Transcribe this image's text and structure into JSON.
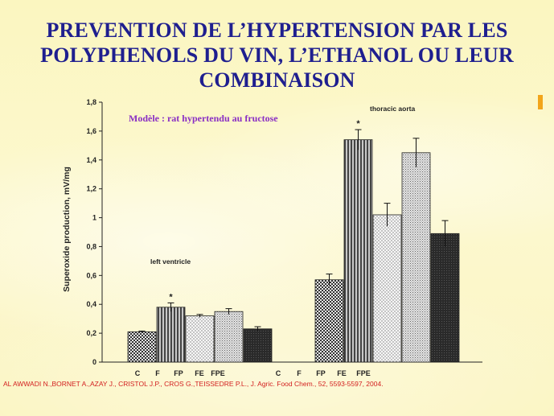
{
  "slide": {
    "title": "PREVENTION DE L’HYPERTENSION PAR LES POLYPHENOLS DU VIN, L’ETHANOL OU LEUR COMBINAISON",
    "model_note": "Modèle : rat hypertendu au fructose",
    "citation": "AL AWWADI N.,BORNET A.,AZAY J., CRISTOL J.P., CROS G.,TEISSEDRE P.L., J. Agric. Food Chem., 52, 5593-5597, 2004.",
    "colors": {
      "title": "#1f1f8f",
      "model_note": "#8a2fc4",
      "citation": "#d32020",
      "background": "#fbf7c6"
    }
  },
  "chart_data": {
    "type": "bar",
    "ylabel": "Superoxide production,  mV/mg",
    "ylim": [
      0,
      1.8
    ],
    "yticks": [
      "0",
      "0,2",
      "0,4",
      "0,6",
      "0,8",
      "1",
      "1,2",
      "1,4",
      "1,6",
      "1,8"
    ],
    "groups": [
      {
        "name": "left ventricle",
        "bars": [
          {
            "category": "C",
            "value": 0.21,
            "error": 0.005,
            "pattern": "checker",
            "star": false
          },
          {
            "category": "F",
            "value": 0.38,
            "error": 0.03,
            "pattern": "vstripe",
            "star": true
          },
          {
            "category": "FP",
            "value": 0.32,
            "error": 0.01,
            "pattern": "dots",
            "star": false
          },
          {
            "category": "FE",
            "value": 0.35,
            "error": 0.02,
            "pattern": "fine",
            "star": false
          },
          {
            "category": "FPE",
            "value": 0.23,
            "error": 0.015,
            "pattern": "dark",
            "star": false
          }
        ]
      },
      {
        "name": "thoracic aorta",
        "bars": [
          {
            "category": "C",
            "value": 0.57,
            "error": 0.04,
            "pattern": "checker",
            "star": false
          },
          {
            "category": "F",
            "value": 1.54,
            "error": 0.07,
            "pattern": "vstripe",
            "star": true
          },
          {
            "category": "FP",
            "value": 1.02,
            "error": 0.08,
            "pattern": "dots",
            "star": false
          },
          {
            "category": "FE",
            "value": 1.45,
            "error": 0.1,
            "pattern": "fine",
            "star": false
          },
          {
            "category": "FPE",
            "value": 0.89,
            "error": 0.09,
            "pattern": "dark",
            "star": false
          }
        ]
      }
    ],
    "x_tick_labels": [
      "C",
      "F",
      "FP",
      "FE",
      "FPE",
      "C",
      "F",
      "FP",
      "FE",
      "FPE"
    ],
    "star_label": "*",
    "grid": false
  }
}
